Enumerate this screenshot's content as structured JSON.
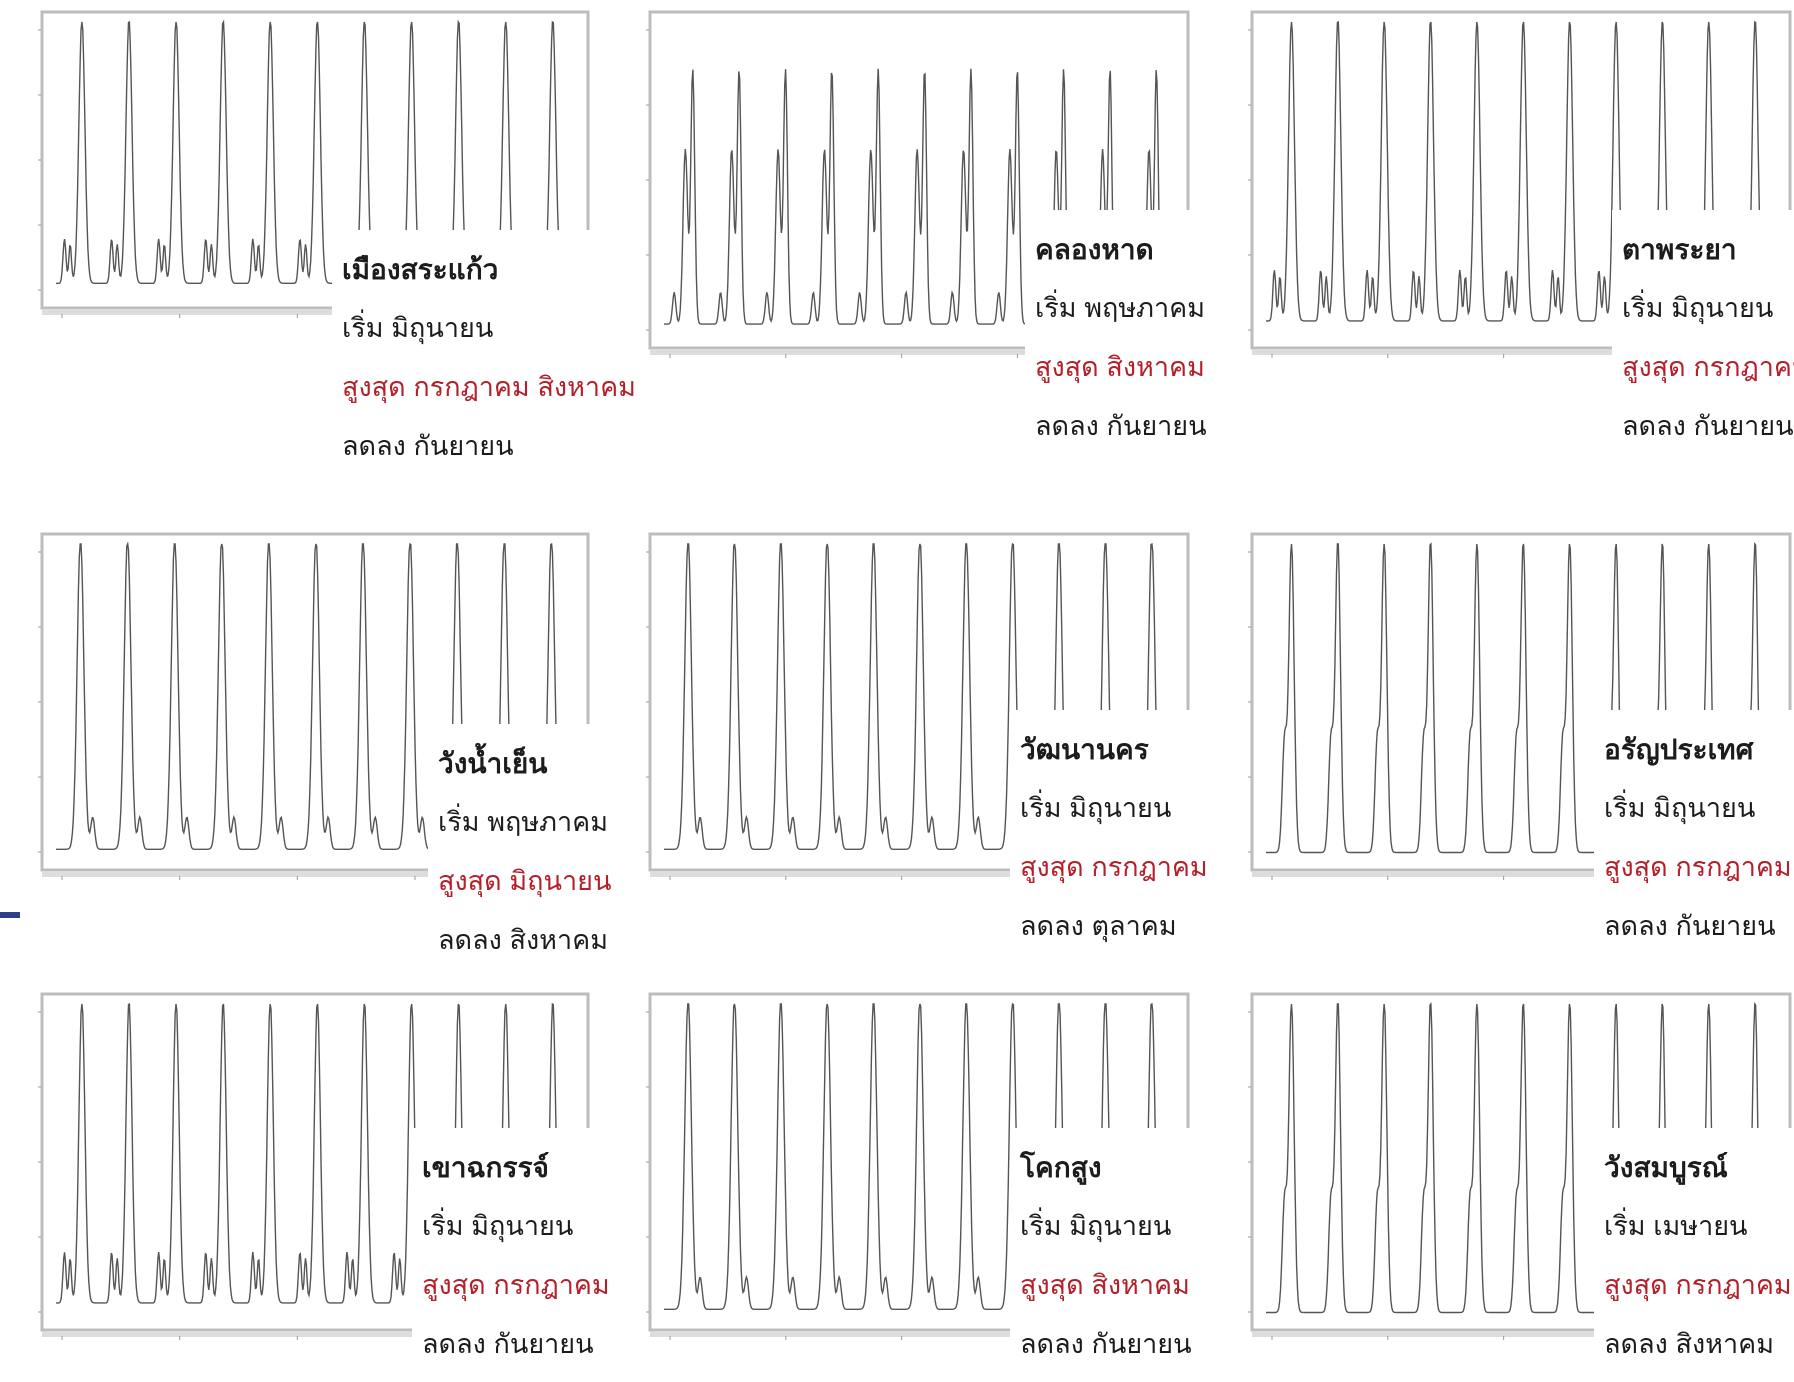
{
  "colors": {
    "peak_text": "#b3202a",
    "line": "#555555",
    "frame": "#bdbdbd"
  },
  "chart_data": [
    {
      "type": "line",
      "profile": "a",
      "cycles": 11,
      "district": "เมืองสระแก้ว",
      "start": "เริ่ม มิถุนายน",
      "peak": "สูงสุด กรกฎาคม สิงหาคม",
      "decline": "ลดลง กันยายน"
    },
    {
      "type": "line",
      "profile": "b",
      "cycles": 11,
      "district": "คลองหาด",
      "start": "เริ่ม พฤษภาคม",
      "peak": "สูงสุด สิงหาคม",
      "decline": "ลดลง กันยายน"
    },
    {
      "type": "line",
      "profile": "a",
      "cycles": 11,
      "district": "ตาพระยา",
      "start": "เริ่ม มิถุนายน",
      "peak": "สูงสุด กรกฎาคม",
      "decline": "ลดลง กันยายน"
    },
    {
      "type": "line",
      "profile": "c",
      "cycles": 11,
      "district": "วังน้ำเย็น",
      "start": "เริ่ม พฤษภาคม",
      "peak": "สูงสุด มิถุนายน",
      "decline": "ลดลง สิงหาคม"
    },
    {
      "type": "line",
      "profile": "c",
      "cycles": 11,
      "district": "วัฒนานคร",
      "start": "เริ่ม มิถุนายน",
      "peak": "สูงสุด กรกฎาคม",
      "decline": "ลดลง ตุลาคม"
    },
    {
      "type": "line",
      "profile": "d",
      "cycles": 11,
      "district": "อรัญประเทศ",
      "start": "เริ่ม มิถุนายน",
      "peak": "สูงสุด กรกฎาคม",
      "decline": "ลดลง กันยายน"
    },
    {
      "type": "line",
      "profile": "a",
      "cycles": 11,
      "district": "เขาฉกรรจ์",
      "start": "เริ่ม มิถุนายน",
      "peak": "สูงสุด กรกฎาคม",
      "decline": "ลดลง กันยายน"
    },
    {
      "type": "line",
      "profile": "c",
      "cycles": 11,
      "district": "โคกสูง",
      "start": "เริ่ม มิถุนายน",
      "peak": "สูงสุด สิงหาคม",
      "decline": "ลดลง กันยายน"
    },
    {
      "type": "line",
      "profile": "d",
      "cycles": 11,
      "district": "วังสมบูรณ์",
      "start": "เริ่ม เมษายน",
      "peak": "สูงสุด กรกฎาคม",
      "decline": "ลดลง สิงหาคม"
    }
  ]
}
